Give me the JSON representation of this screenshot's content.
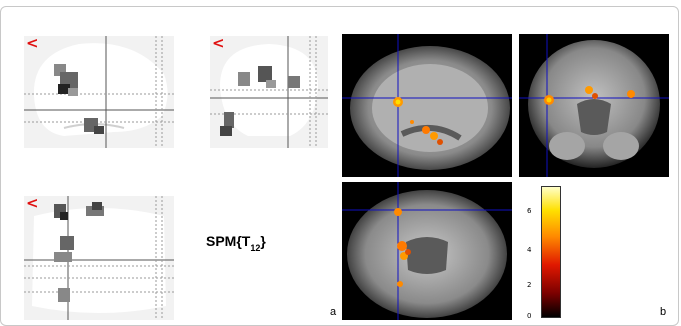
{
  "figure": {
    "marker_symbol": "<",
    "spm_label": {
      "main": "SPM{T",
      "subscript": "12",
      "close": "}"
    },
    "panel_a": "a",
    "panel_b": "b"
  },
  "colorbar": {
    "ticks": [
      "6",
      "4",
      "2",
      "0"
    ],
    "colors": [
      "#000000",
      "#7a0000",
      "#e01800",
      "#ff8a00",
      "#ffe000",
      "#ffffc8"
    ]
  },
  "colors": {
    "crosshair": "#1010c0",
    "glass_outline": "#ffffff",
    "glass_background": "#f2f2f2",
    "marker": "#e01010"
  }
}
